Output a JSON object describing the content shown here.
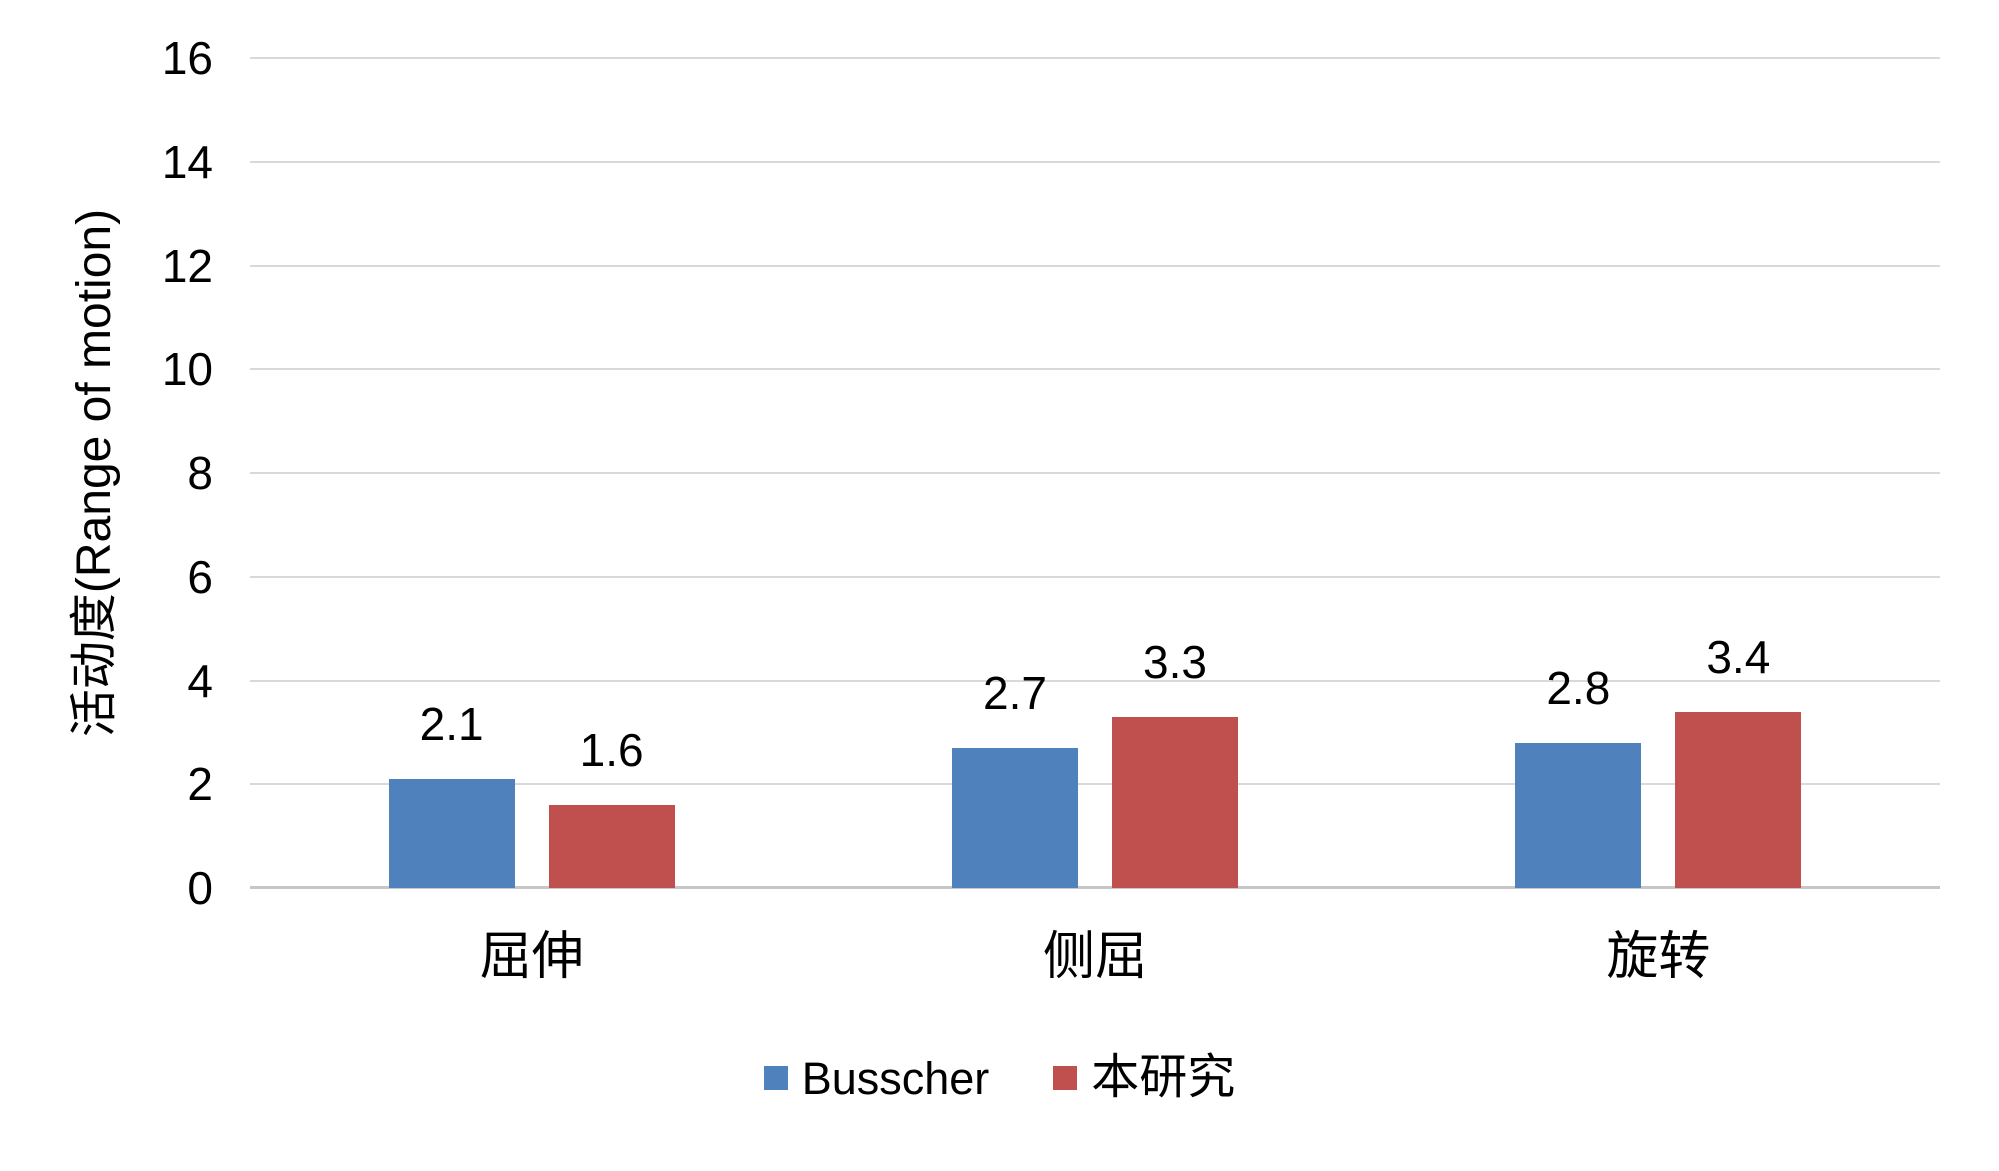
{
  "chart_data": {
    "type": "bar",
    "title": "",
    "categories": [
      "屈伸",
      "侧屈",
      "旋转"
    ],
    "series": [
      {
        "name": "Busscher",
        "color": "#4F81BD",
        "values": [
          2.1,
          2.7,
          2.8
        ]
      },
      {
        "name": "本研究",
        "color": "#C0504D",
        "values": [
          1.6,
          3.3,
          3.4
        ]
      }
    ],
    "value_labels": [
      [
        "2.1",
        "2.7",
        "2.8"
      ],
      [
        "1.6",
        "3.3",
        "3.4"
      ]
    ],
    "xlabel": "",
    "ylabel": "活动度(Range of motion)",
    "ylabel_parts": {
      "cjk": "活动度",
      "latin": "(Range of motion)"
    },
    "ylim": [
      0,
      16
    ],
    "yticks": [
      0,
      2,
      4,
      6,
      8,
      10,
      12,
      14,
      16
    ],
    "grid": true,
    "legend_position": "bottom",
    "colors": {
      "gridline": "#D9D9D9",
      "axis_line": "#C6C6C6",
      "text": "#000000",
      "background": "#FFFFFF"
    }
  }
}
